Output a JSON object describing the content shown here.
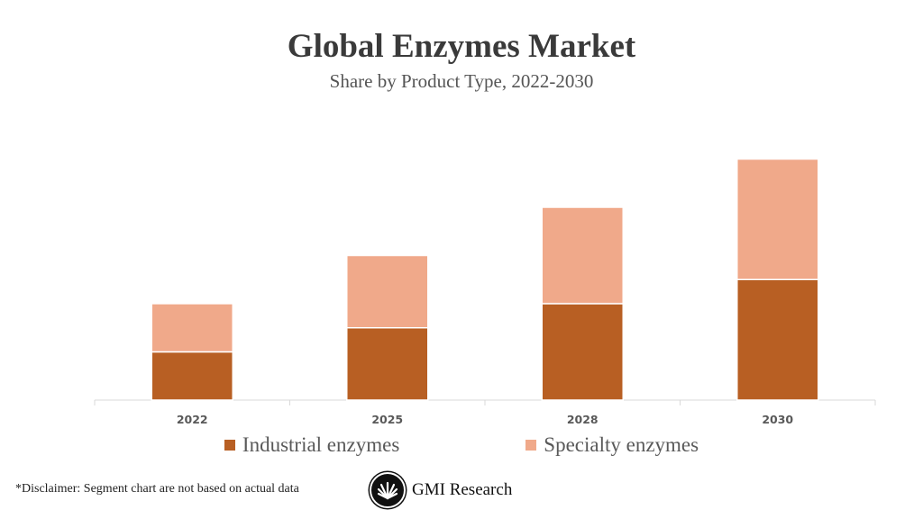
{
  "chart_data": {
    "type": "bar",
    "stacked": true,
    "title": "Global Enzymes Market",
    "subtitle": "Share by Product Type, 2022-2030",
    "categories": [
      "2022",
      "2025",
      "2028",
      "2030"
    ],
    "series": [
      {
        "name": "Industrial enzymes",
        "values": [
          2,
          3,
          4,
          5
        ],
        "color": "#B85F23"
      },
      {
        "name": "Specialty enzymes",
        "values": [
          2,
          3,
          4,
          5
        ],
        "color": "#F0A98A"
      }
    ],
    "xlabel": "",
    "ylabel": "",
    "grid": false,
    "legend": "bottom"
  },
  "disclaimer": "*Disclaimer:  Segment chart are not based on actual data",
  "logo": {
    "text": "GMI Research"
  }
}
